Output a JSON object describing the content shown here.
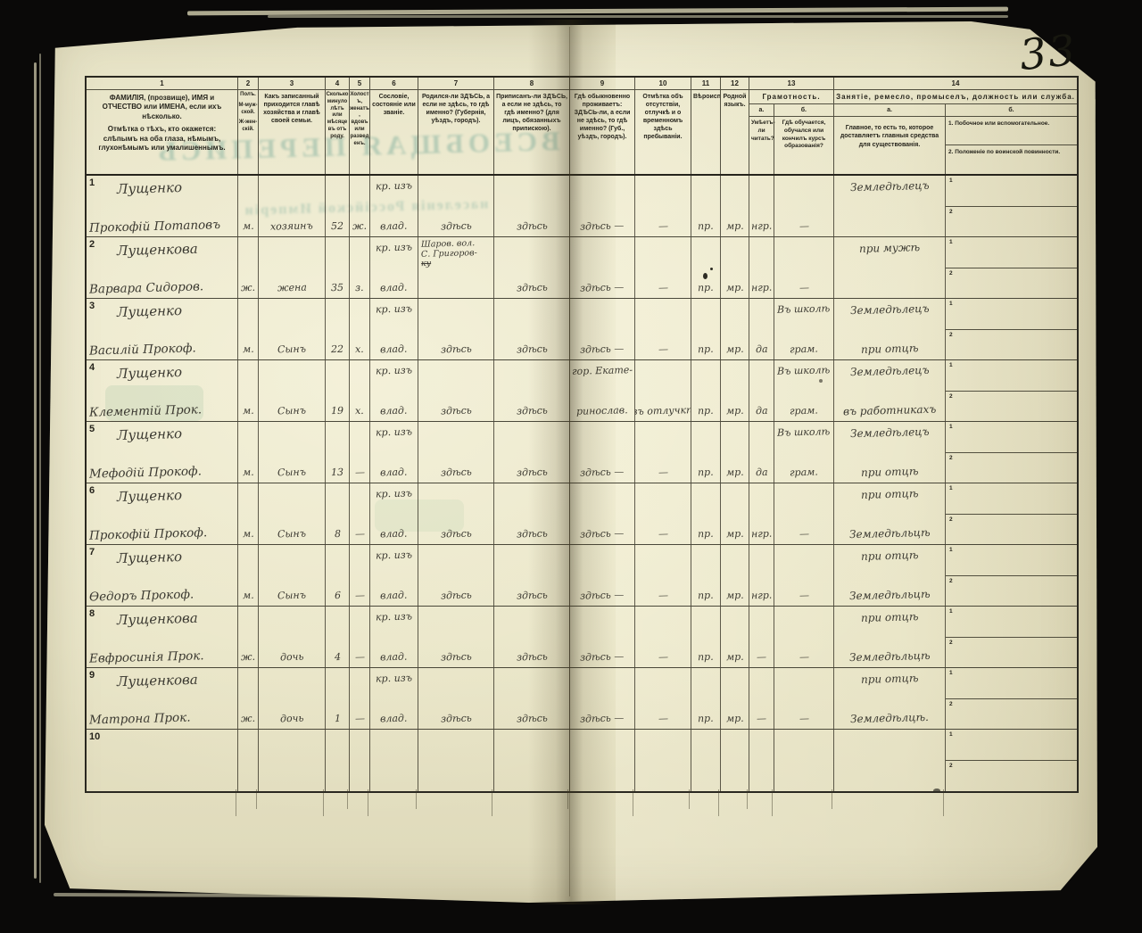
{
  "page": {
    "number": "33",
    "bleedthrough_line1": "ВСЕОБЩАЯ ПЕРЕПИСЬ",
    "bleedthrough_line2": "населенія Россійской Имперіи"
  },
  "table": {
    "col_numbers": [
      "1",
      "2",
      "3",
      "4",
      "5",
      "6",
      "7",
      "8",
      "9",
      "10",
      "11",
      "12",
      "13",
      "14"
    ],
    "headers": {
      "c1a": "ФАМИЛІЯ, (прозвище), ИМЯ и ОТЧЕСТВО или ИМЕНА, если ихъ нѣсколько.",
      "c1b": "Отмѣтка о тѣхъ, кто окажется: слѣпымъ на оба глаза, нѣмымъ, глухонѣмымъ или умалишеннымъ.",
      "c2a": "Полъ.",
      "c2b": "М-муж-ской.",
      "c2c": "Ж-жен-скій.",
      "c3": "Какъ записанный приходится главѣ хозяйства и главѣ своей семьи.",
      "c4": "Сколько минуло лѣтъ или мѣсяцевъ отъ роду.",
      "c5": "Холостъ, женатъ, вдовъ или разведенъ.",
      "c6": "Сословіе, состояніе или званіе.",
      "c7": "Родился-ли ЗДѢСЬ, а если не здѣсь, то гдѣ именно? (Губернія, уѣздъ, городъ).",
      "c8": "Приписанъ-ли ЗДѢСЬ, а если не здѣсь, то гдѣ именно? (для лицъ, обязанныхъ припискою).",
      "c9": "Гдѣ обыкновенно проживаетъ: ЗДѢСЬ-ли, а если не здѣсь, то гдѣ именно? (Губ., уѣздъ, городъ).",
      "c10": "Отмѣтка объ отсутствіи, отлучкѣ и о временномъ здѣсь пребываніи.",
      "c11": "Вѣроисповѣданіе.",
      "c12": "Родной языкъ.",
      "c13": "Грамотность.",
      "c13a_lbl": "а.",
      "c13b_lbl": "б.",
      "c13a": "Умѣетъ-ли читать?",
      "c13b": "Гдѣ обучается, обучался или кончилъ курсъ образованія?",
      "c14": "Занятіе, ремесло, промыселъ, должность или служба.",
      "c14a_lbl": "а.",
      "c14b_lbl": "б.",
      "c14a": "Главное, то есть то, которое доставляетъ главныя средства для существованія.",
      "c14b_1": "1.  Побочное или вспомогательное.",
      "c14b_2": "2.  Положеніе по воинской повинности."
    },
    "military_sub_labels": [
      "1",
      "2"
    ],
    "rows": [
      {
        "num": "1",
        "surname": "Лущенко",
        "name": "Прокофій Потаповъ",
        "sex": "м.",
        "relation": "хозяинъ",
        "age": "52",
        "marital": "ж.",
        "estate": [
          "кр. изъ",
          "влад."
        ],
        "born": [
          "здѣсь"
        ],
        "registered": "здѣсь",
        "resides": [
          "здѣсь —"
        ],
        "absence": "—",
        "religion": "пр.",
        "language": "мр.",
        "literate": "нгр.",
        "school": [
          "",
          "—"
        ],
        "occupation": [
          "Земледѣлецъ",
          ""
        ]
      },
      {
        "num": "2",
        "surname": "Лущенкова",
        "name": "Варвара Сидоров.",
        "sex": "ж.",
        "relation": "жена",
        "age": "35",
        "marital": "з.",
        "estate": [
          "кр. изъ",
          "влад."
        ],
        "born": [
          "Шаров. вол.",
          "С. Григоров-",
          "ку"
        ],
        "strike_last_born": true,
        "registered": "здѣсь",
        "resides": [
          "здѣсь —"
        ],
        "absence": "—",
        "religion": "пр.",
        "language": "мр.",
        "literate": "нгр.",
        "school": [
          "",
          "—"
        ],
        "occupation": [
          "при мужѣ",
          ""
        ]
      },
      {
        "num": "3",
        "surname": "Лущенко",
        "name": "Василій Прокоф.",
        "sex": "м.",
        "relation": "Сынъ",
        "age": "22",
        "marital": "х.",
        "estate": [
          "кр. изъ",
          "влад."
        ],
        "born": [
          "здѣсь"
        ],
        "registered": "здѣсь",
        "resides": [
          "здѣсь —"
        ],
        "absence": "—",
        "religion": "пр.",
        "language": "мр.",
        "literate": "да",
        "school": [
          "Въ школѣ",
          "грам."
        ],
        "occupation": [
          "Земледѣлецъ",
          "при отцѣ"
        ]
      },
      {
        "num": "4",
        "surname": "Лущенко",
        "name": "Клементій Прок.",
        "sex": "м.",
        "relation": "Сынъ",
        "age": "19",
        "marital": "х.",
        "estate": [
          "кр. изъ",
          "влад."
        ],
        "born": [
          "здѣсь"
        ],
        "registered": "здѣсь",
        "resides": [
          "гор. Екате-",
          "ринослав."
        ],
        "absence": "въ отлучкѣ",
        "religion": "пр.",
        "language": "мр.",
        "literate": "да",
        "school": [
          "Въ школѣ",
          "грам."
        ],
        "occupation": [
          "Земледѣлецъ",
          "въ работникахъ"
        ]
      },
      {
        "num": "5",
        "surname": "Лущенко",
        "name": "Мефодій Прокоф.",
        "sex": "м.",
        "relation": "Сынъ",
        "age": "13",
        "marital": "—",
        "estate": [
          "кр. изъ",
          "влад."
        ],
        "born": [
          "здѣсь"
        ],
        "registered": "здѣсь",
        "resides": [
          "здѣсь —"
        ],
        "absence": "—",
        "religion": "пр.",
        "language": "мр.",
        "literate": "да",
        "school": [
          "Въ школѣ",
          "грам."
        ],
        "occupation": [
          "Земледѣлецъ",
          "при отцѣ"
        ]
      },
      {
        "num": "6",
        "surname": "Лущенко",
        "name": "Прокофій Прокоф.",
        "sex": "м.",
        "relation": "Сынъ",
        "age": "8",
        "marital": "—",
        "estate": [
          "кр. изъ",
          "влад."
        ],
        "born": [
          "здѣсь"
        ],
        "registered": "здѣсь",
        "resides": [
          "здѣсь —"
        ],
        "absence": "—",
        "religion": "пр.",
        "language": "мр.",
        "literate": "нгр.",
        "school": [
          "",
          "—"
        ],
        "occupation": [
          "при отцѣ",
          "Земледѣльцѣ"
        ]
      },
      {
        "num": "7",
        "surname": "Лущенко",
        "name": "Ѳедоръ Прокоф.",
        "sex": "м.",
        "relation": "Сынъ",
        "age": "6",
        "marital": "—",
        "estate": [
          "кр. изъ",
          "влад."
        ],
        "born": [
          "здѣсь"
        ],
        "registered": "здѣсь",
        "resides": [
          "здѣсь —"
        ],
        "absence": "—",
        "religion": "пр.",
        "language": "мр.",
        "literate": "нгр.",
        "school": [
          "",
          "—"
        ],
        "occupation": [
          "при отцѣ",
          "Земледѣльцѣ"
        ]
      },
      {
        "num": "8",
        "surname": "Лущенкова",
        "name": "Евфросинія Прок.",
        "sex": "ж.",
        "relation": "дочь",
        "age": "4",
        "marital": "—",
        "estate": [
          "кр. изъ",
          "влад."
        ],
        "born": [
          "здѣсь"
        ],
        "registered": "здѣсь",
        "resides": [
          "здѣсь —"
        ],
        "absence": "—",
        "religion": "пр.",
        "language": "мр.",
        "literate": "—",
        "school": [
          "",
          "—"
        ],
        "occupation": [
          "при отцѣ",
          "Земледѣльцѣ"
        ]
      },
      {
        "num": "9",
        "surname": "Лущенкова",
        "name": "Матрона Прок.",
        "sex": "ж.",
        "relation": "дочь",
        "age": "1",
        "marital": "—",
        "estate": [
          "кр. изъ",
          "влад."
        ],
        "born": [
          "здѣсь"
        ],
        "registered": "здѣсь",
        "resides": [
          "здѣсь —"
        ],
        "absence": "—",
        "religion": "пр.",
        "language": "мр.",
        "literate": "—",
        "school": [
          "",
          "—"
        ],
        "occupation": [
          "при отцѣ",
          "Земледѣлцѣ."
        ]
      },
      {
        "num": "10",
        "surname": "",
        "name": "",
        "sex": "",
        "relation": "",
        "age": "",
        "marital": "",
        "estate": [
          "",
          ""
        ],
        "born": [
          ""
        ],
        "registered": "",
        "resides": [
          ""
        ],
        "absence": "",
        "religion": "",
        "language": "",
        "literate": "",
        "school": [
          "",
          ""
        ],
        "occupation": [
          "",
          ""
        ]
      }
    ]
  }
}
